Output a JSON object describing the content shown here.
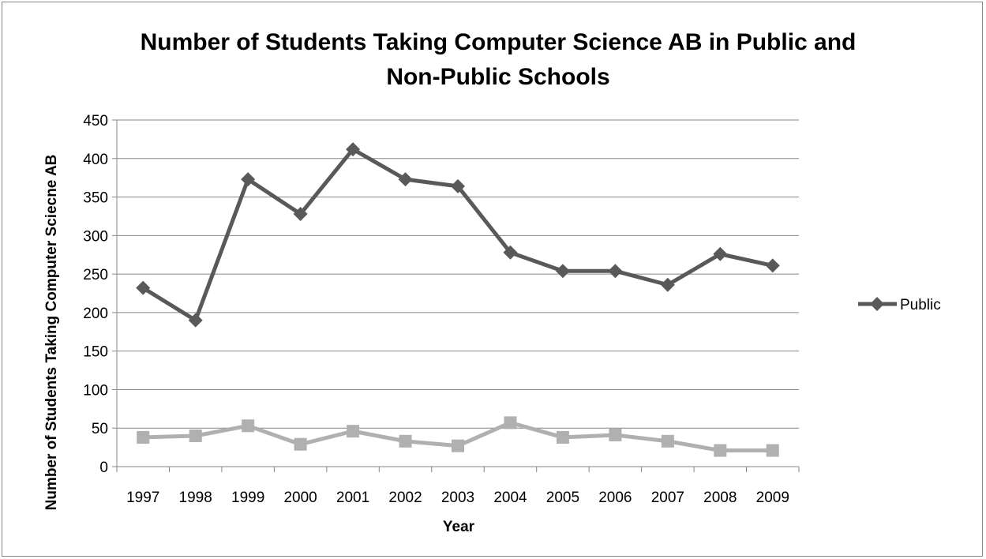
{
  "chart_data": {
    "type": "line",
    "title_line1": "Number of Students Taking Computer Science AB in Public and",
    "title_line2": "Non-Public Schools",
    "xlabel": "Year",
    "ylabel": "Number of Students Taking Computer Sciecne AB",
    "categories": [
      "1997",
      "1998",
      "1999",
      "2000",
      "2001",
      "2002",
      "2003",
      "2004",
      "2005",
      "2006",
      "2007",
      "2008",
      "2009"
    ],
    "ylim": [
      0,
      450
    ],
    "yticks": [
      0,
      50,
      100,
      150,
      200,
      250,
      300,
      350,
      400,
      450
    ],
    "grid": true,
    "legend_position": "right",
    "series": [
      {
        "name": "Public",
        "marker": "diamond",
        "color": "#595959",
        "values": [
          232,
          190,
          373,
          328,
          412,
          373,
          364,
          278,
          254,
          254,
          236,
          276,
          261
        ]
      },
      {
        "marker": "square",
        "color": "#b0b0b0",
        "values": [
          38,
          40,
          53,
          29,
          46,
          33,
          27,
          57,
          38,
          41,
          33,
          21,
          21
        ]
      }
    ]
  }
}
